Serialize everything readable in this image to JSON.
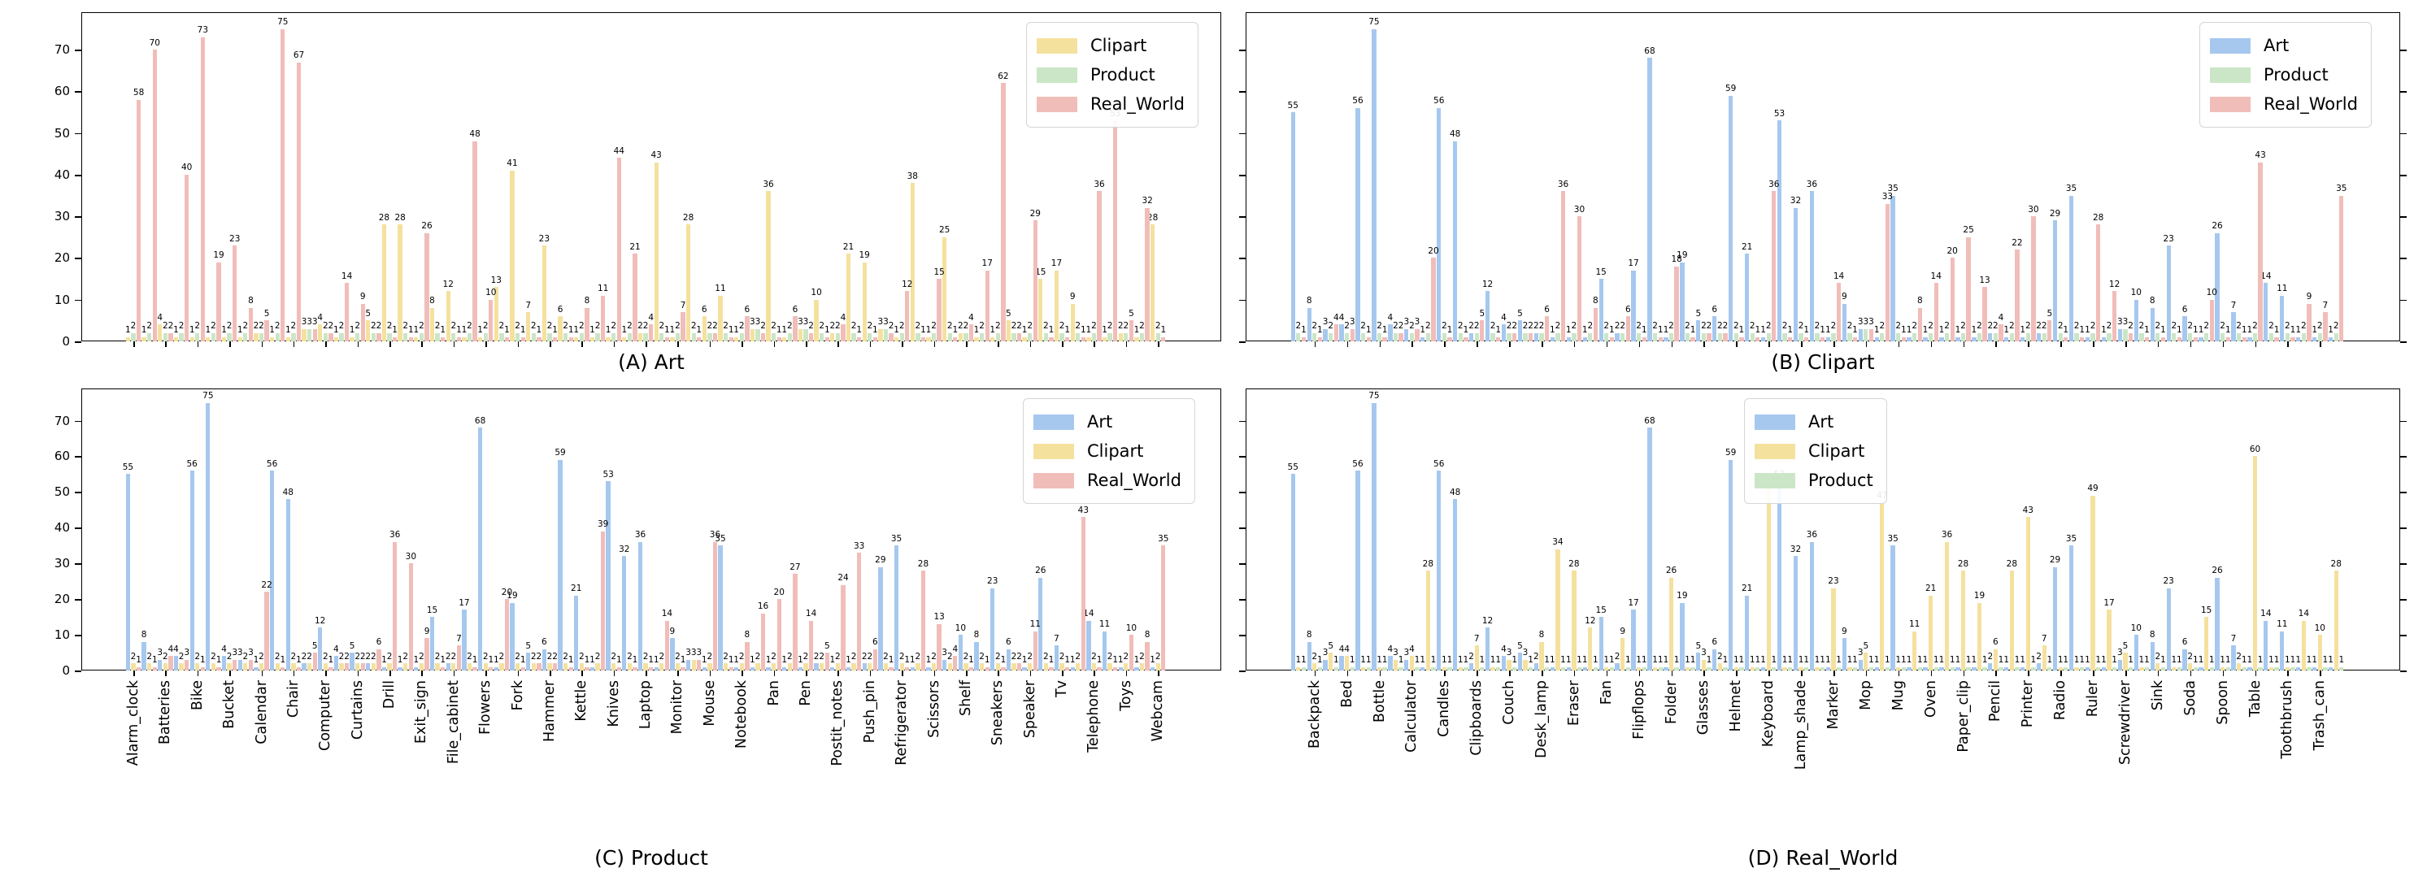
{
  "figure": {
    "background": "#ffffff"
  },
  "colors": {
    "Art": "#a6c8ef",
    "Clipart": "#f5e19e",
    "Product": "#cbe6c6",
    "Real_World": "#f1bdb9"
  },
  "y_axis": {
    "ticks": [
      0,
      10,
      20,
      30,
      40,
      50,
      60,
      70
    ],
    "max": 79
  },
  "categories": [
    "Alarm_clock",
    "Backpack",
    "Batteries",
    "Bed",
    "Bike",
    "Bottle",
    "Bucket",
    "Calculator",
    "Calendar",
    "Candles",
    "Chair",
    "Clipboards",
    "Computer",
    "Couch",
    "Curtains",
    "Desk_lamp",
    "Drill",
    "Eraser",
    "Exit_sign",
    "Fan",
    "File_cabinet",
    "Flipflops",
    "Flowers",
    "Folder",
    "Fork",
    "Glasses",
    "Hammer",
    "Helmet",
    "Kettle",
    "Keyboard",
    "Knives",
    "Lamp_shade",
    "Laptop",
    "Marker",
    "Monitor",
    "Mop",
    "Mouse",
    "Mug",
    "Notebook",
    "Oven",
    "Pan",
    "Paper_clip",
    "Pen",
    "Pencil",
    "Postit_notes",
    "Printer",
    "Push_pin",
    "Radio",
    "Refrigerator",
    "Ruler",
    "Scissors",
    "Screwdriver",
    "Shelf",
    "Sink",
    "Sneakers",
    "Soda",
    "Speaker",
    "Spoon",
    "Tv",
    "Table",
    "Telephone",
    "Toothbrush",
    "Toys",
    "Trash_can",
    "Webcam"
  ],
  "chart_data": [
    {
      "id": "A",
      "type": "bar",
      "caption": "(A) Art",
      "legend": [
        "Clipart",
        "Product",
        "Real_World"
      ],
      "tick_parity": "even",
      "show_category_labels": false,
      "show_y_labels": true,
      "series": [
        {
          "name": "Clipart",
          "values": [
            1,
            1,
            4,
            1,
            1,
            1,
            1,
            1,
            2,
            1,
            1,
            3,
            4,
            1,
            1,
            5,
            28,
            28,
            1,
            8,
            12,
            1,
            1,
            13,
            41,
            7,
            23,
            6,
            1,
            1,
            1,
            1,
            2,
            43,
            1,
            28,
            6,
            11,
            1,
            3,
            36,
            1,
            3,
            10,
            2,
            21,
            19,
            3,
            1,
            38,
            1,
            25,
            2,
            1,
            1,
            5,
            1,
            15,
            17,
            9,
            1,
            1,
            2,
            1,
            28
          ]
        },
        {
          "name": "Product",
          "values": [
            2,
            2,
            2,
            2,
            2,
            2,
            2,
            2,
            2,
            2,
            2,
            3,
            2,
            2,
            2,
            2,
            2,
            2,
            2,
            2,
            2,
            2,
            2,
            2,
            2,
            2,
            2,
            2,
            2,
            2,
            2,
            2,
            2,
            2,
            2,
            2,
            2,
            2,
            2,
            3,
            2,
            2,
            3,
            2,
            2,
            2,
            2,
            3,
            2,
            2,
            2,
            2,
            2,
            2,
            2,
            2,
            2,
            2,
            2,
            2,
            2,
            2,
            2,
            2,
            2
          ]
        },
        {
          "name": "Real_World",
          "values": [
            58,
            70,
            2,
            40,
            73,
            19,
            23,
            8,
            5,
            75,
            67,
            3,
            2,
            14,
            9,
            2,
            1,
            1,
            26,
            1,
            1,
            48,
            10,
            1,
            1,
            1,
            1,
            1,
            8,
            11,
            44,
            21,
            4,
            1,
            7,
            1,
            2,
            1,
            6,
            2,
            1,
            6,
            2,
            1,
            4,
            1,
            1,
            2,
            12,
            1,
            15,
            1,
            4,
            17,
            62,
            2,
            29,
            1,
            1,
            1,
            36,
            53,
            5,
            32,
            1
          ]
        }
      ]
    },
    {
      "id": "B",
      "type": "bar",
      "caption": "(B) Clipart",
      "legend": [
        "Art",
        "Product",
        "Real_World"
      ],
      "tick_parity": "odd",
      "show_category_labels": false,
      "show_y_labels": false,
      "series": [
        {
          "name": "Art",
          "values": [
            55,
            8,
            3,
            4,
            56,
            75,
            4,
            3,
            1,
            56,
            48,
            2,
            12,
            4,
            5,
            2,
            1,
            1,
            1,
            15,
            2,
            17,
            68,
            1,
            19,
            5,
            6,
            59,
            21,
            1,
            53,
            32,
            36,
            1,
            9,
            3,
            1,
            35,
            1,
            1,
            1,
            1,
            1,
            2,
            1,
            1,
            2,
            29,
            35,
            1,
            1,
            3,
            10,
            8,
            23,
            6,
            1,
            26,
            7,
            1,
            14,
            11,
            1,
            1,
            1
          ]
        },
        {
          "name": "Product",
          "values": [
            2,
            2,
            2,
            2,
            2,
            2,
            2,
            2,
            2,
            2,
            2,
            2,
            2,
            2,
            2,
            2,
            2,
            2,
            2,
            2,
            2,
            2,
            2,
            2,
            2,
            2,
            2,
            2,
            2,
            2,
            2,
            2,
            2,
            2,
            2,
            3,
            2,
            2,
            2,
            2,
            2,
            2,
            2,
            2,
            2,
            2,
            2,
            2,
            2,
            2,
            2,
            3,
            2,
            2,
            2,
            2,
            2,
            2,
            2,
            2,
            2,
            2,
            2,
            2,
            2
          ]
        },
        {
          "name": "Real_World",
          "values": [
            1,
            1,
            4,
            3,
            1,
            1,
            2,
            3,
            20,
            1,
            1,
            5,
            1,
            2,
            2,
            6,
            36,
            30,
            8,
            1,
            6,
            1,
            1,
            18,
            1,
            2,
            2,
            1,
            1,
            36,
            1,
            1,
            1,
            14,
            1,
            3,
            33,
            1,
            8,
            14,
            20,
            25,
            13,
            4,
            22,
            30,
            5,
            1,
            1,
            28,
            12,
            2,
            1,
            1,
            1,
            1,
            10,
            1,
            1,
            43,
            1,
            1,
            9,
            7,
            35
          ]
        }
      ]
    },
    {
      "id": "C",
      "type": "bar",
      "caption": "(C) Product",
      "legend": [
        "Art",
        "Clipart",
        "Real_World"
      ],
      "tick_parity": "even",
      "show_category_labels": true,
      "show_y_labels": true,
      "series": [
        {
          "name": "Art",
          "values": [
            55,
            8,
            3,
            4,
            56,
            75,
            4,
            3,
            1,
            56,
            48,
            2,
            12,
            4,
            5,
            2,
            1,
            1,
            1,
            15,
            2,
            17,
            68,
            1,
            19,
            5,
            6,
            59,
            21,
            1,
            53,
            32,
            36,
            1,
            9,
            3,
            1,
            35,
            1,
            1,
            1,
            1,
            1,
            2,
            1,
            1,
            2,
            29,
            35,
            1,
            1,
            3,
            10,
            8,
            23,
            6,
            1,
            26,
            7,
            1,
            14,
            11,
            1,
            1,
            1
          ]
        },
        {
          "name": "Clipart",
          "values": [
            2,
            2,
            2,
            2,
            2,
            2,
            2,
            2,
            2,
            2,
            2,
            2,
            2,
            2,
            2,
            2,
            2,
            2,
            2,
            2,
            2,
            2,
            2,
            2,
            2,
            2,
            2,
            2,
            2,
            2,
            2,
            2,
            2,
            2,
            2,
            3,
            2,
            2,
            2,
            2,
            2,
            2,
            2,
            2,
            2,
            2,
            2,
            2,
            2,
            2,
            2,
            2,
            2,
            2,
            2,
            2,
            2,
            2,
            2,
            2,
            2,
            2,
            2,
            2,
            2
          ]
        },
        {
          "name": "Real_World",
          "values": [
            1,
            1,
            4,
            3,
            1,
            1,
            3,
            3,
            22,
            1,
            1,
            5,
            1,
            2,
            2,
            6,
            36,
            30,
            9,
            1,
            7,
            1,
            1,
            20,
            1,
            2,
            2,
            1,
            1,
            39,
            1,
            1,
            1,
            14,
            1,
            3,
            36,
            1,
            8,
            16,
            20,
            27,
            14,
            5,
            24,
            33,
            6,
            1,
            1,
            28,
            13,
            4,
            1,
            1,
            1,
            2,
            11,
            1,
            1,
            43,
            1,
            1,
            10,
            8,
            35
          ]
        }
      ]
    },
    {
      "id": "D",
      "type": "bar",
      "caption": "(D) Real_World",
      "legend": [
        "Art",
        "Clipart",
        "Product"
      ],
      "tick_parity": "odd",
      "show_category_labels": true,
      "show_y_labels": false,
      "series": [
        {
          "name": "Art",
          "values": [
            55,
            8,
            3,
            4,
            56,
            75,
            4,
            3,
            1,
            56,
            48,
            2,
            12,
            4,
            5,
            2,
            1,
            1,
            1,
            15,
            2,
            17,
            68,
            1,
            19,
            5,
            6,
            59,
            21,
            1,
            53,
            32,
            36,
            1,
            9,
            3,
            1,
            35,
            1,
            1,
            1,
            1,
            1,
            2,
            1,
            1,
            2,
            29,
            35,
            1,
            1,
            3,
            10,
            8,
            23,
            6,
            1,
            26,
            7,
            1,
            14,
            11,
            1,
            1,
            1
          ]
        },
        {
          "name": "Clipart",
          "values": [
            1,
            2,
            5,
            4,
            1,
            1,
            3,
            4,
            28,
            1,
            1,
            7,
            1,
            3,
            3,
            8,
            34,
            28,
            12,
            1,
            9,
            1,
            1,
            26,
            1,
            3,
            2,
            1,
            1,
            51,
            1,
            1,
            1,
            23,
            1,
            5,
            47,
            1,
            11,
            21,
            36,
            28,
            19,
            6,
            28,
            43,
            7,
            1,
            1,
            49,
            17,
            5,
            1,
            2,
            1,
            2,
            15,
            1,
            2,
            60,
            1,
            1,
            14,
            10,
            28
          ]
        },
        {
          "name": "Product",
          "values": [
            1,
            1,
            1,
            1,
            1,
            1,
            1,
            1,
            1,
            1,
            1,
            1,
            1,
            1,
            1,
            1,
            1,
            1,
            1,
            1,
            1,
            1,
            1,
            1,
            1,
            1,
            1,
            1,
            1,
            1,
            1,
            1,
            1,
            1,
            1,
            1,
            1,
            1,
            1,
            1,
            1,
            1,
            1,
            1,
            1,
            1,
            1,
            1,
            1,
            1,
            1,
            1,
            1,
            1,
            1,
            1,
            1,
            1,
            1,
            1,
            1,
            1,
            1,
            1,
            1
          ]
        }
      ]
    }
  ]
}
